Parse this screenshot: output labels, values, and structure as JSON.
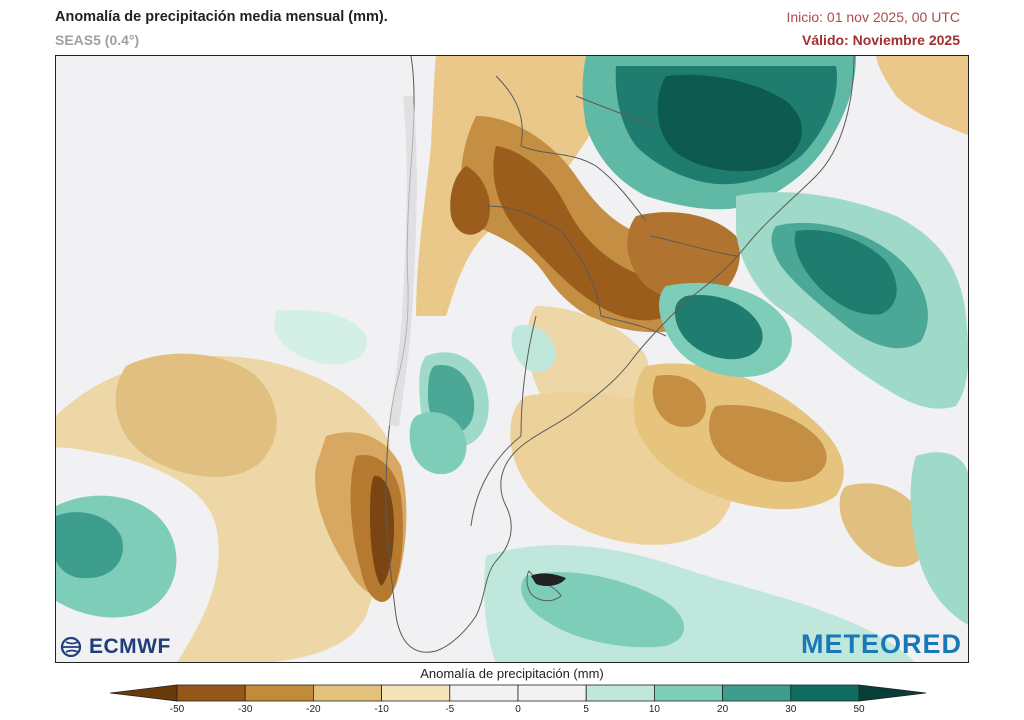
{
  "header": {
    "title": "Anomalía de precipitación media mensual (mm).",
    "model": "SEAS5 (0.4°)",
    "init": "Inicio: 01 nov 2025, 00 UTC",
    "valid": "Válido: Noviembre 2025"
  },
  "logos": {
    "left": "ECMWF",
    "right": "METEORED"
  },
  "colorbar": {
    "title": "Anomalía de precipitación (mm)",
    "ticks": [
      "-50",
      "-30",
      "-20",
      "-10",
      "-5",
      "0",
      "5",
      "10",
      "20",
      "30",
      "50"
    ],
    "colors": [
      "#6b3a0c",
      "#96561a",
      "#c28b3a",
      "#e3c17c",
      "#f4e4bc",
      "#f2f2f2",
      "#f2f2f2",
      "#bfe7dc",
      "#7ecdb9",
      "#3d9e8d",
      "#0f6e62",
      "#053f37"
    ]
  },
  "palette": {
    "land": "#ececef",
    "border": "#555555",
    "ocean": "#f0f0f1"
  }
}
